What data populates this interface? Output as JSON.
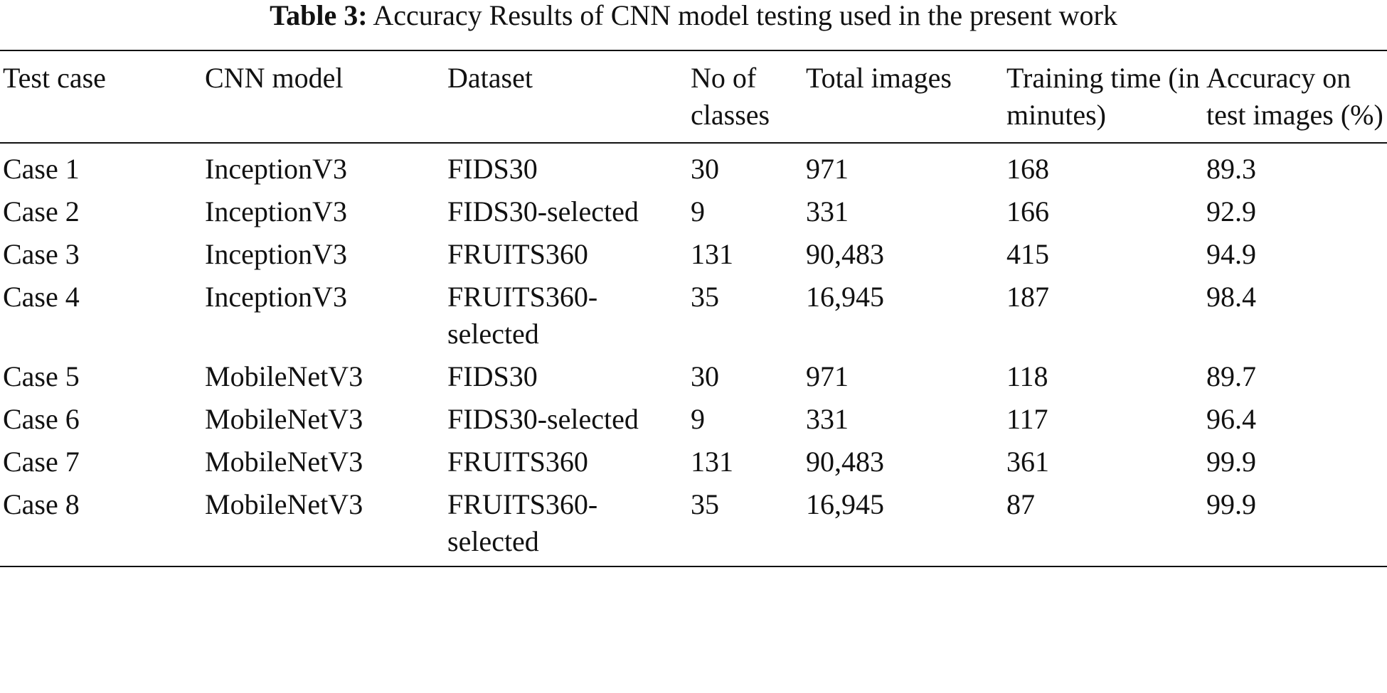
{
  "caption": {
    "label": "Table 3:",
    "text": "Accuracy Results of CNN model testing used in the present work"
  },
  "table": {
    "headers": [
      "Test case",
      "CNN model",
      "Dataset",
      "No of classes",
      "Total images",
      "Training time (in minutes)",
      "Accuracy on test images (%)"
    ],
    "rows": [
      [
        "Case 1",
        "InceptionV3",
        "FIDS30",
        "30",
        "971",
        "168",
        "89.3"
      ],
      [
        "Case 2",
        "InceptionV3",
        "FIDS30-selected",
        "9",
        "331",
        "166",
        "92.9"
      ],
      [
        "Case 3",
        "InceptionV3",
        "FRUITS360",
        "131",
        "90,483",
        "415",
        "94.9"
      ],
      [
        "Case 4",
        "InceptionV3",
        "FRUITS360-selected",
        "35",
        "16,945",
        "187",
        "98.4"
      ],
      [
        "Case 5",
        "MobileNetV3",
        "FIDS30",
        "30",
        "971",
        "118",
        "89.7"
      ],
      [
        "Case 6",
        "MobileNetV3",
        "FIDS30-selected",
        "9",
        "331",
        "117",
        "96.4"
      ],
      [
        "Case 7",
        "MobileNetV3",
        "FRUITS360",
        "131",
        "90,483",
        "361",
        "99.9"
      ],
      [
        "Case 8",
        "MobileNetV3",
        "FRUITS360-selected",
        "35",
        "16,945",
        "87",
        "99.9"
      ]
    ]
  }
}
